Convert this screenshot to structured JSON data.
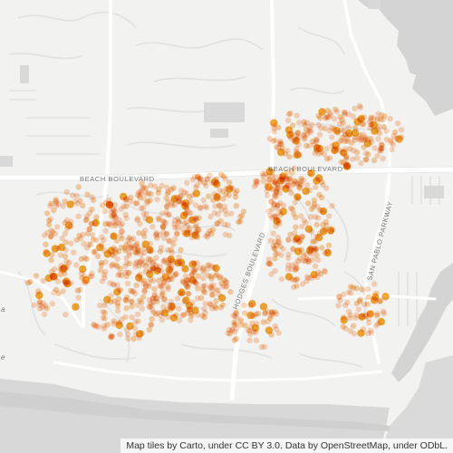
{
  "map": {
    "road_labels": {
      "beach_boulevard_west": "BEACH BOULEVARD",
      "beach_boulevard_east": "BEACH BOULEVARD",
      "hodges_boulevard": "HODGES BOULEVARD",
      "san_pablo_parkway": "SAN PABLO PARKWAY"
    },
    "place_labels": {
      "left_edge_1": "a",
      "left_edge_2": "e"
    },
    "attribution": "Map tiles by Carto, under CC BY 3.0. Data by OpenStreetMap, under ODbL.",
    "colors": {
      "background": "#f2f2f1",
      "water": "#d4d4d4",
      "major_road": "#ffffff",
      "minor_road": "#e4e4e4",
      "building": "#dcdcdc",
      "point_light": "#f7a870",
      "point_dark": "#f29a3a",
      "point_highlight": "#f5a020"
    }
  }
}
